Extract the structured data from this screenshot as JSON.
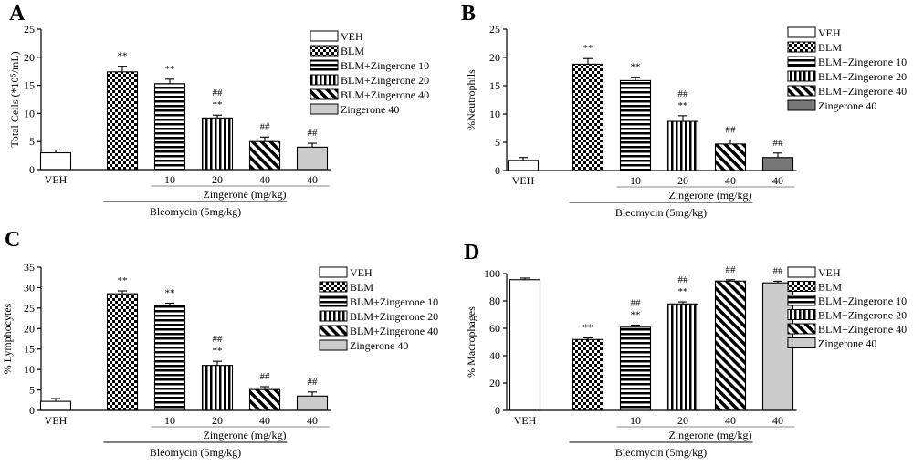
{
  "chart_data": [
    {
      "panel": "A",
      "type": "bar",
      "ylabel": "Total Cells (*10⁵/mL)",
      "ylim": [
        0,
        25
      ],
      "yticks": [
        "0",
        "5",
        "10",
        "15",
        "20",
        "25"
      ],
      "categories": [
        "VEH",
        "10",
        "20",
        "40",
        "40"
      ],
      "series": [
        {
          "name": "VEH",
          "value": 3.0,
          "error": 0.5,
          "sig": "",
          "pattern": "white",
          "color": "#ffffff"
        },
        {
          "name": "BLM",
          "value": 17.4,
          "error": 1.0,
          "sig": "**",
          "pattern": "checker",
          "color": "#000000"
        },
        {
          "name": "BLM+Zingerone 10",
          "value": 15.3,
          "error": 0.8,
          "sig": "**",
          "pattern": "hlines",
          "color": "#000000"
        },
        {
          "name": "BLM+Zingerone 20",
          "value": 9.2,
          "error": 0.5,
          "sig": "##\n**",
          "pattern": "vlines",
          "color": "#000000"
        },
        {
          "name": "BLM+Zingerone 40",
          "value": 5.0,
          "error": 0.8,
          "sig": "##",
          "pattern": "diag",
          "color": "#000000"
        },
        {
          "name": "Zingerone 40",
          "value": 4.0,
          "error": 0.7,
          "sig": "##",
          "pattern": "gray",
          "color": "#cccccc"
        }
      ],
      "group_label": "Zingerone (mg/kg)",
      "treatment_label": "Bleomycin (5mg/kg)"
    },
    {
      "panel": "B",
      "type": "bar",
      "ylabel": "%Neutrophils",
      "ylim": [
        0,
        25
      ],
      "yticks": [
        "0",
        "5",
        "10",
        "15",
        "20",
        "25"
      ],
      "categories": [
        "VEH",
        "10",
        "20",
        "40",
        "40"
      ],
      "series": [
        {
          "name": "VEH",
          "value": 1.8,
          "error": 0.5,
          "sig": "",
          "pattern": "white",
          "color": "#ffffff"
        },
        {
          "name": "BLM",
          "value": 18.8,
          "error": 1.0,
          "sig": "**",
          "pattern": "checker",
          "color": "#000000"
        },
        {
          "name": "BLM+Zingerone 10",
          "value": 15.9,
          "error": 0.6,
          "sig": "**",
          "pattern": "hlines",
          "color": "#000000"
        },
        {
          "name": "BLM+Zingerone 20",
          "value": 8.7,
          "error": 1.0,
          "sig": "##\n**",
          "pattern": "vlines",
          "color": "#000000"
        },
        {
          "name": "BLM+Zingerone 40",
          "value": 4.7,
          "error": 0.7,
          "sig": "##",
          "pattern": "diag",
          "color": "#000000"
        },
        {
          "name": "Zingerone 40",
          "value": 2.3,
          "error": 0.8,
          "sig": "##",
          "pattern": "dark",
          "color": "#777777"
        }
      ],
      "group_label": "Zingerone (mg/kg)",
      "treatment_label": "Bleomycin (5mg/kg)"
    },
    {
      "panel": "C",
      "type": "bar",
      "ylabel": "% Lymphocytes",
      "ylim": [
        0,
        35
      ],
      "yticks": [
        "0",
        "5",
        "10",
        "15",
        "20",
        "25",
        "30",
        "35"
      ],
      "categories": [
        "VEH",
        "10",
        "20",
        "40",
        "40"
      ],
      "series": [
        {
          "name": "VEH",
          "value": 2.2,
          "error": 0.7,
          "sig": "",
          "pattern": "white",
          "color": "#ffffff"
        },
        {
          "name": "BLM",
          "value": 28.5,
          "error": 0.7,
          "sig": "**",
          "pattern": "checker",
          "color": "#000000"
        },
        {
          "name": "BLM+Zingerone 10",
          "value": 25.6,
          "error": 0.6,
          "sig": "**",
          "pattern": "hlines",
          "color": "#000000"
        },
        {
          "name": "BLM+Zingerone 20",
          "value": 11.0,
          "error": 1.0,
          "sig": "##\n**",
          "pattern": "vlines",
          "color": "#000000"
        },
        {
          "name": "BLM+Zingerone 40",
          "value": 5.1,
          "error": 0.7,
          "sig": "##",
          "pattern": "diag",
          "color": "#000000"
        },
        {
          "name": "Zingerone 40",
          "value": 3.5,
          "error": 1.0,
          "sig": "##",
          "pattern": "gray",
          "color": "#cccccc"
        }
      ],
      "group_label": "Zingerone (mg/kg)",
      "treatment_label": "Bleomycin (5mg/kg)"
    },
    {
      "panel": "D",
      "type": "bar",
      "ylabel": "% Macrophages",
      "ylim": [
        0,
        100
      ],
      "yticks": [
        "0",
        "20",
        "40",
        "60",
        "80",
        "100"
      ],
      "categories": [
        "VEH",
        "10",
        "20",
        "40",
        "40"
      ],
      "series": [
        {
          "name": "VEH",
          "value": 95.5,
          "error": 1.2,
          "sig": "",
          "pattern": "white",
          "color": "#ffffff"
        },
        {
          "name": "BLM",
          "value": 51.8,
          "error": 1.2,
          "sig": "**",
          "pattern": "checker",
          "color": "#000000"
        },
        {
          "name": "BLM+Zingerone 10",
          "value": 60.8,
          "error": 1.5,
          "sig": "##\n**",
          "pattern": "hlines",
          "color": "#000000"
        },
        {
          "name": "BLM+Zingerone 20",
          "value": 77.8,
          "error": 1.5,
          "sig": "##\n**",
          "pattern": "vlines",
          "color": "#000000"
        },
        {
          "name": "BLM+Zingerone 40",
          "value": 94.5,
          "error": 1.0,
          "sig": "##",
          "pattern": "diag",
          "color": "#000000"
        },
        {
          "name": "Zingerone 40",
          "value": 93.2,
          "error": 1.2,
          "sig": "##",
          "pattern": "gray",
          "color": "#cccccc"
        }
      ],
      "group_label": "Zingerone (mg/kg)",
      "treatment_label": "Bleomycin (5mg/kg)"
    }
  ]
}
